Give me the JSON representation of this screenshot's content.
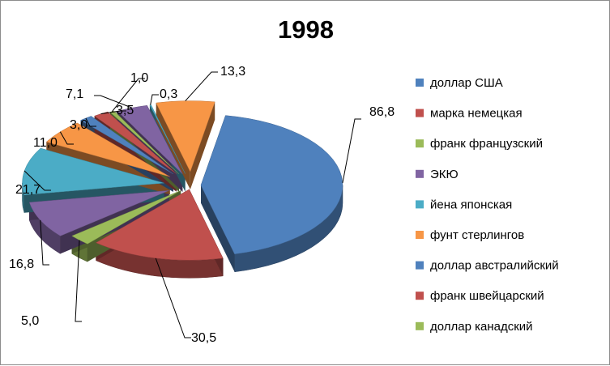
{
  "chart_data": {
    "type": "pie",
    "title": "1998",
    "legend_position": "right",
    "categories": [
      "доллар США",
      "марка немецкая",
      "франк французский",
      "ЭКЮ",
      "йена японская",
      "фунт стерлингов",
      "доллар австралийский",
      "франк швейцарский",
      "доллар канадский"
    ],
    "values": [
      86.8,
      30.5,
      5.0,
      16.8,
      21.7,
      11.0,
      3.0,
      3.5,
      1.0
    ],
    "data_labels": [
      "86,8",
      "30,5",
      "5,0",
      "16,8",
      "21,7",
      "11,0",
      "3,0",
      "3,5",
      "1,0"
    ],
    "other_slices": [
      {
        "value": 7.1,
        "label": "7,1"
      },
      {
        "value": 0.3,
        "label": "0,3"
      },
      {
        "value": 13.3,
        "label": "13,3"
      }
    ],
    "colors": [
      "#4F81BD",
      "#C0504D",
      "#9BBB59",
      "#8064A2",
      "#4BACC6",
      "#F79646",
      "#4F81BD",
      "#C0504D",
      "#9BBB59",
      "#8064A2",
      "#4BACC6",
      "#F79646"
    ]
  }
}
